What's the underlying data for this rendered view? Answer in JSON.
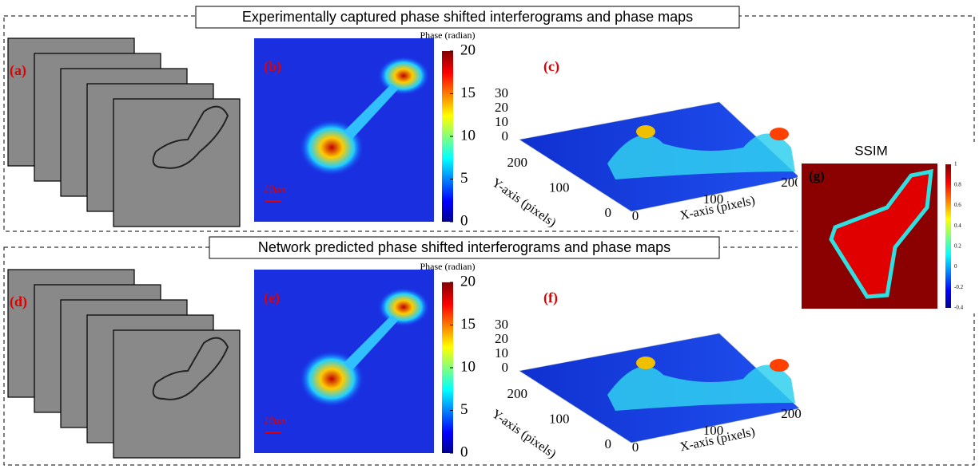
{
  "sections": [
    {
      "title": "Experimentally captured phase shifted interferograms and phase maps",
      "panel_labels": [
        "(a)",
        "(b)",
        "(c)"
      ],
      "colorbar_label": "Phase (radian)",
      "colorbar_ticks": [
        0,
        5,
        10,
        15,
        20
      ],
      "scale_bar": "10μm",
      "surface": {
        "z_ticks": [
          0,
          10,
          20,
          30
        ],
        "y_ticks": [
          0,
          100,
          200
        ],
        "x_ticks": [
          0,
          100,
          200
        ],
        "y_label": "Y-axis (pixels)",
        "x_label": "X-axis (pixels)"
      }
    },
    {
      "title": "Network predicted phase shifted interferograms and phase maps",
      "panel_labels": [
        "(d)",
        "(e)",
        "(f)"
      ],
      "colorbar_label": "Phase (radian)",
      "colorbar_ticks": [
        0,
        5,
        10,
        15,
        20
      ],
      "scale_bar": "10μm",
      "surface": {
        "z_ticks": [
          0,
          10,
          20,
          30
        ],
        "y_ticks": [
          0,
          100,
          200
        ],
        "x_ticks": [
          0,
          100,
          200
        ],
        "y_label": "Y-axis (pixels)",
        "x_label": "X-axis (pixels)"
      }
    }
  ],
  "ssim": {
    "title": "SSIM",
    "panel_label": "(g)",
    "colorbar_ticks": [
      1,
      0.8,
      0.6,
      0.4,
      0.2,
      0,
      -0.2,
      -0.4
    ]
  }
}
